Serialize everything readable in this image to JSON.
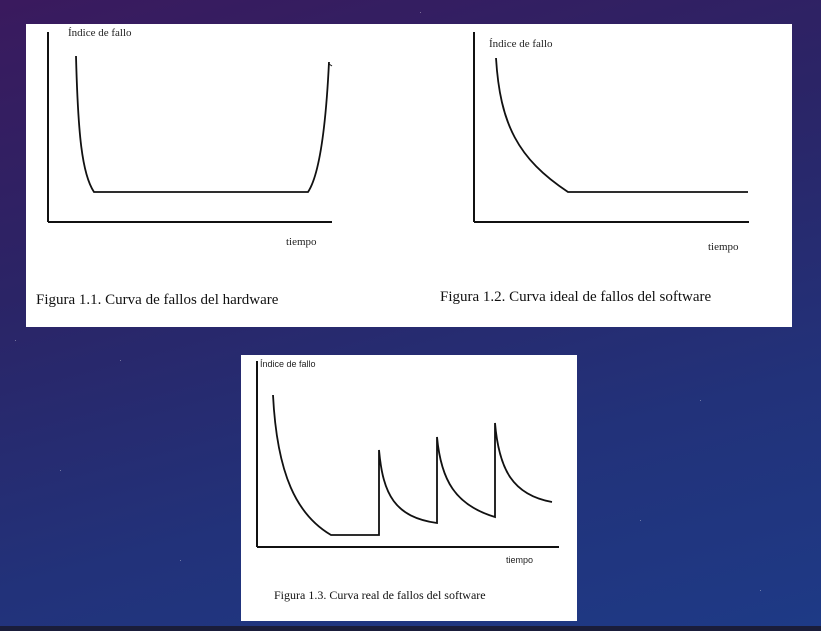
{
  "figure_1_1": {
    "y_label": "Índice de fallo",
    "x_label": "tiempo",
    "caption": "Figura 1.1. Curva de fallos del hardware"
  },
  "figure_1_2": {
    "y_label": "Índice de fallo",
    "x_label": "tiempo",
    "caption": "Figura 1.2. Curva ideal de fallos del software"
  },
  "figure_1_3": {
    "y_label": "Índice de fallo",
    "x_label": "tiempo",
    "caption": "Figura 1.3. Curva real de fallos del software"
  },
  "colors": {
    "background_top": "#3a1a5e",
    "background_bottom": "#1e3a86",
    "panel": "#ffffff",
    "ink": "#111111"
  }
}
